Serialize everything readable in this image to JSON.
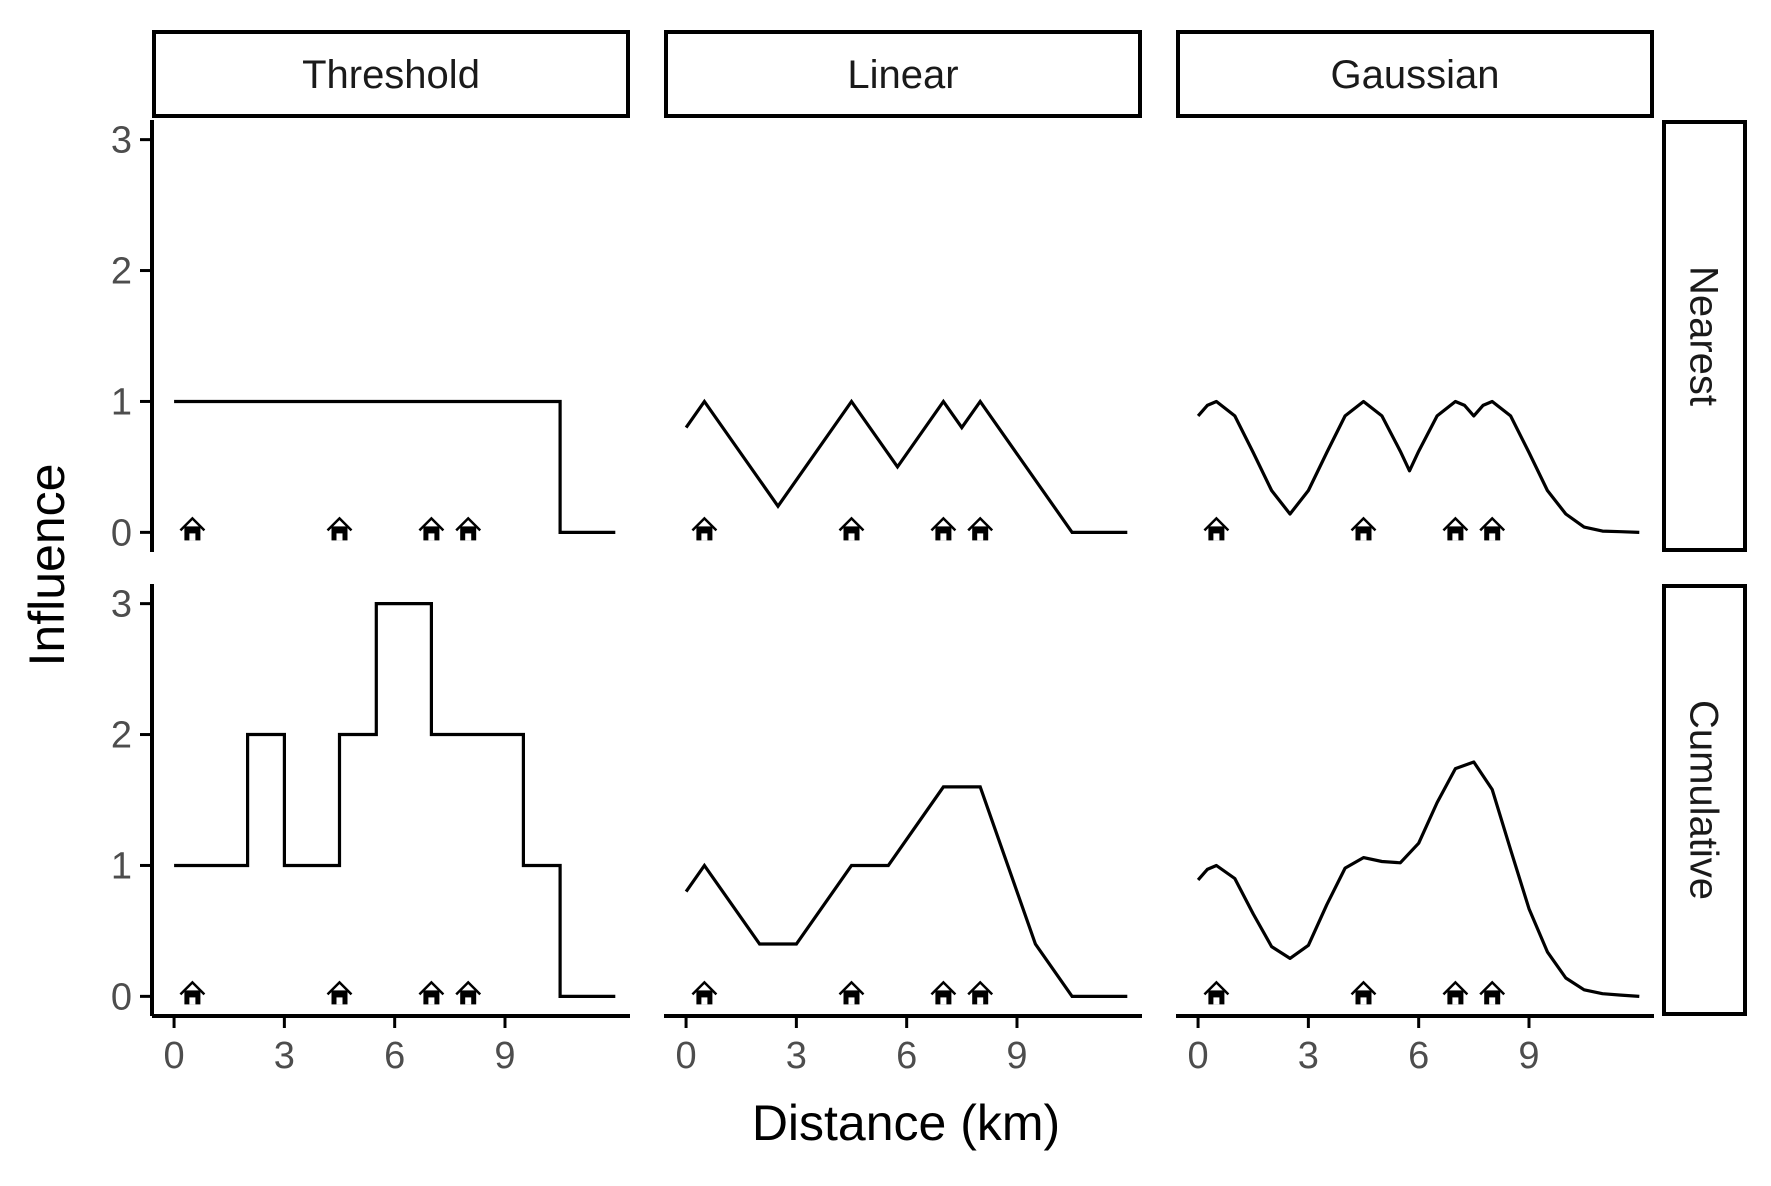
{
  "chart_data": {
    "type": "line",
    "xlabel": "Distance (km)",
    "ylabel": "Influence",
    "xlim": [
      -0.6,
      12.4
    ],
    "ylim": [
      -0.15,
      3.15
    ],
    "x_ticks": [
      0,
      3,
      6,
      9
    ],
    "y_ticks": [
      0,
      1,
      2,
      3
    ],
    "grid": false,
    "legend": "none",
    "col_facets": [
      "Threshold",
      "Linear",
      "Gaussian"
    ],
    "row_facets": [
      "Nearest",
      "Cumulative"
    ],
    "marker_icon": "house-icon",
    "house_positions": [
      0.5,
      4.5,
      7,
      8
    ],
    "panels": [
      {
        "row": "Nearest",
        "col": "Threshold",
        "x": [
          0,
          10.5,
          10.5,
          12
        ],
        "y": [
          1,
          1,
          0,
          0
        ]
      },
      {
        "row": "Nearest",
        "col": "Linear",
        "x": [
          0,
          0.5,
          2.5,
          4.5,
          5.75,
          7,
          7.5,
          8,
          10.5,
          12
        ],
        "y": [
          0.8,
          1,
          0.2,
          1,
          0.5,
          1,
          0.8,
          1,
          0,
          0
        ]
      },
      {
        "row": "Nearest",
        "col": "Gaussian",
        "x": [
          0,
          0.25,
          0.5,
          1,
          1.5,
          2,
          2.5,
          3,
          3.5,
          4,
          4.5,
          5,
          5.5,
          5.75,
          6,
          6.5,
          7,
          7.25,
          7.5,
          7.75,
          8,
          8.5,
          9,
          9.5,
          10,
          10.5,
          11,
          11.5,
          12
        ],
        "y": [
          0.89,
          0.97,
          1,
          0.89,
          0.61,
          0.32,
          0.14,
          0.32,
          0.61,
          0.89,
          1,
          0.89,
          0.62,
          0.47,
          0.62,
          0.89,
          1,
          0.97,
          0.89,
          0.97,
          1,
          0.89,
          0.61,
          0.32,
          0.14,
          0.04,
          0.01,
          0.005,
          0
        ]
      },
      {
        "row": "Cumulative",
        "col": "Threshold",
        "x": [
          0,
          2,
          2,
          3,
          3,
          4.5,
          4.5,
          5.5,
          5.5,
          7,
          7,
          9.5,
          9.5,
          10.5,
          10.5,
          12
        ],
        "y": [
          1,
          1,
          2,
          2,
          1,
          1,
          2,
          2,
          3,
          3,
          2,
          2,
          1,
          1,
          0,
          0
        ]
      },
      {
        "row": "Cumulative",
        "col": "Linear",
        "x": [
          0,
          0.5,
          2,
          3,
          4.5,
          5.5,
          7,
          8,
          9.5,
          10.5,
          12
        ],
        "y": [
          0.8,
          1,
          0.4,
          0.4,
          1,
          1,
          1.6,
          1.6,
          0.4,
          0,
          0
        ]
      },
      {
        "row": "Cumulative",
        "col": "Gaussian",
        "x": [
          0,
          0.25,
          0.5,
          1,
          1.5,
          2,
          2.5,
          3,
          3.5,
          4,
          4.5,
          5,
          5.5,
          6,
          6.5,
          7,
          7.5,
          8,
          8.5,
          9,
          9.5,
          10,
          10.5,
          11,
          11.5,
          12
        ],
        "y": [
          0.89,
          0.97,
          1,
          0.9,
          0.63,
          0.38,
          0.29,
          0.39,
          0.7,
          0.98,
          1.06,
          1.03,
          1.02,
          1.17,
          1.48,
          1.74,
          1.79,
          1.58,
          1.12,
          0.67,
          0.34,
          0.14,
          0.05,
          0.02,
          0.01,
          0
        ]
      }
    ]
  }
}
